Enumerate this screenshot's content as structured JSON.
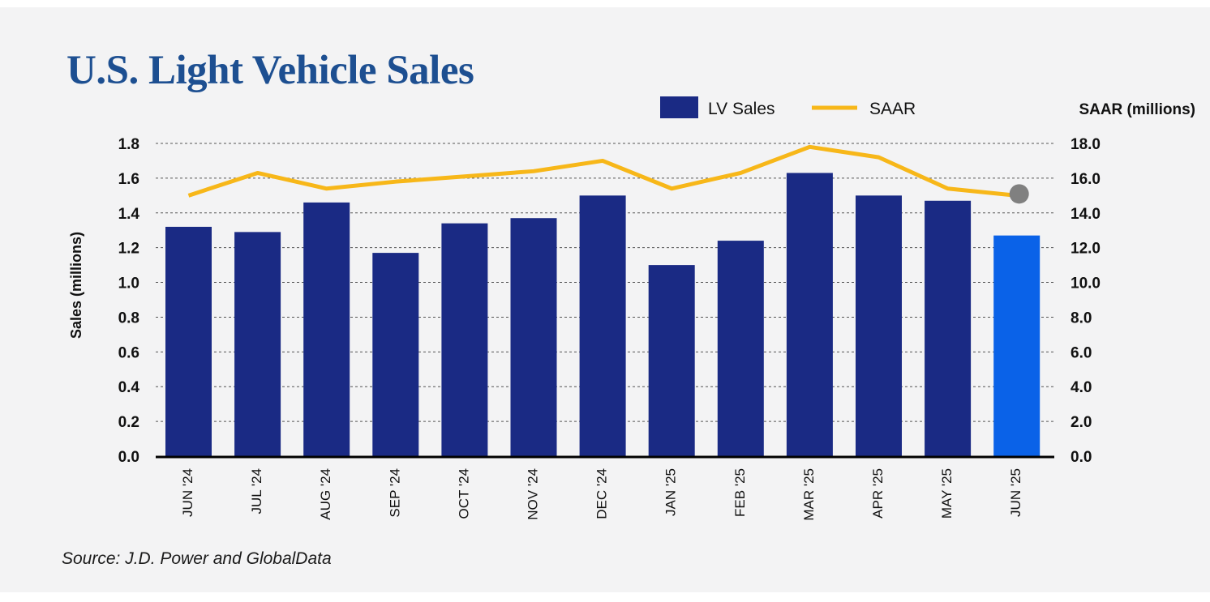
{
  "chart_data": {
    "type": "bar",
    "title": "U.S. Light Vehicle Sales",
    "categories": [
      "JUN '24",
      "JUL '24",
      "AUG '24",
      "SEP '24",
      "OCT '24",
      "NOV '24",
      "DEC '24",
      "JAN '25",
      "FEB '25",
      "MAR '25",
      "APR '25",
      "MAY '25",
      "JUN '25"
    ],
    "series": [
      {
        "name": "LV Sales",
        "type": "bar",
        "axis": "left",
        "color": "#1a2a84",
        "highlight_color": "#0a62e8",
        "highlight_index": 12,
        "values": [
          1.32,
          1.29,
          1.46,
          1.17,
          1.34,
          1.37,
          1.5,
          1.1,
          1.24,
          1.63,
          1.5,
          1.47,
          1.27
        ]
      },
      {
        "name": "SAAR",
        "type": "line",
        "axis": "right",
        "color": "#f7b719",
        "marker_color": "#808080",
        "marker_index": 12,
        "values": [
          15.0,
          16.3,
          15.4,
          15.8,
          16.1,
          16.4,
          17.0,
          15.4,
          16.3,
          17.8,
          17.2,
          15.4,
          15.0
        ]
      }
    ],
    "ylabel": "Sales (millions)",
    "y2label": "SAAR (millions)",
    "ylim": [
      0,
      1.8
    ],
    "y2lim": [
      0,
      18
    ],
    "yticks": [
      "0.0",
      "0.2",
      "0.4",
      "0.6",
      "0.8",
      "1.0",
      "1.2",
      "1.4",
      "1.6",
      "1.8"
    ],
    "y2ticks": [
      "0.0",
      "2.0",
      "4.0",
      "6.0",
      "8.0",
      "10.0",
      "12.0",
      "14.0",
      "16.0",
      "18.0"
    ],
    "grid": "horizontal dashed",
    "legend": "top-right"
  },
  "source": "Source: J.D. Power and GlobalData"
}
